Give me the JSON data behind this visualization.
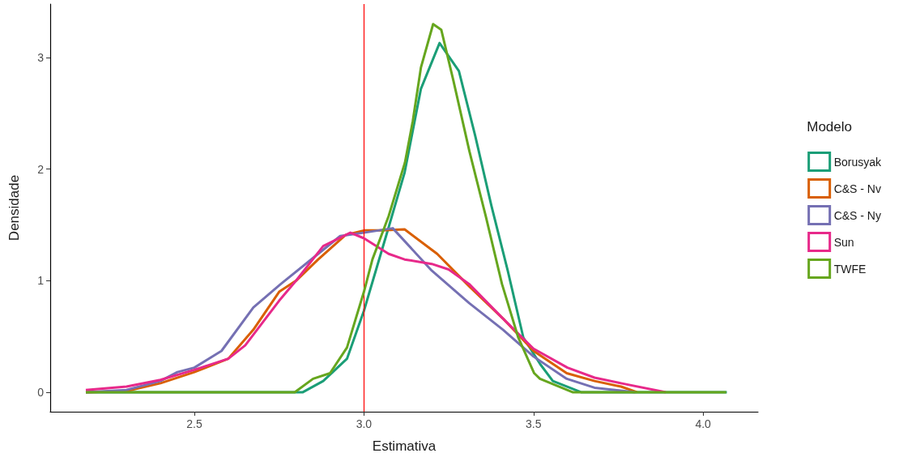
{
  "chart_data": {
    "type": "line",
    "xlabel": "Estimativa",
    "ylabel": "Densidade",
    "legend_title": "Modelo",
    "legend": "right",
    "grid": false,
    "marker": "none",
    "line_style": "solid",
    "xlim": [
      2.075,
      4.162
    ],
    "ylim": [
      -0.175,
      3.48
    ],
    "xticks": [
      2.5,
      {
        "value": 3,
        "label": "3.0"
      },
      3.5,
      {
        "value": 4,
        "label": "4.0"
      }
    ],
    "yticks": [
      0,
      1,
      2,
      3
    ],
    "ref_lines": [
      {
        "axis": "x",
        "value": 3,
        "color": "#ff0000"
      }
    ],
    "series": [
      {
        "name": "Borusyak",
        "color": "#1b9e77",
        "x": [
          2.18,
          2.82,
          2.88,
          2.95,
          3.0,
          3.073,
          3.12,
          3.168,
          3.223,
          3.28,
          3.328,
          3.376,
          3.424,
          3.47,
          3.52,
          3.557,
          3.64,
          4.07
        ],
        "values": [
          0,
          0,
          0.1,
          0.3,
          0.73,
          1.48,
          1.97,
          2.72,
          3.13,
          2.88,
          2.3,
          1.67,
          1.09,
          0.49,
          0.25,
          0.1,
          0,
          0
        ]
      },
      {
        "name": "C&S - Nv",
        "color": "#d95f02",
        "x": [
          2.18,
          2.3,
          2.4,
          2.5,
          2.6,
          2.674,
          2.75,
          2.8,
          2.865,
          2.946,
          3.0,
          3.05,
          3.12,
          3.216,
          3.31,
          3.41,
          3.5,
          3.598,
          3.68,
          3.758,
          3.805
        ],
        "values": [
          0,
          0.01,
          0.08,
          0.18,
          0.3,
          0.56,
          0.9,
          1.0,
          1.19,
          1.41,
          1.45,
          1.45,
          1.46,
          1.24,
          0.95,
          0.66,
          0.37,
          0.17,
          0.1,
          0.05,
          0
        ]
      },
      {
        "name": "C&S - Ny",
        "color": "#7570b3",
        "x": [
          2.18,
          2.3,
          2.4,
          2.45,
          2.5,
          2.58,
          2.674,
          2.755,
          2.865,
          2.93,
          3.0,
          3.085,
          3.2,
          3.31,
          3.41,
          3.5,
          3.598,
          3.68,
          3.8
        ],
        "values": [
          0,
          0.02,
          0.1,
          0.18,
          0.22,
          0.37,
          0.76,
          0.97,
          1.24,
          1.4,
          1.43,
          1.47,
          1.09,
          0.8,
          0.56,
          0.32,
          0.12,
          0.04,
          0
        ]
      },
      {
        "name": "Sun",
        "color": "#e7298a",
        "x": [
          2.18,
          2.3,
          2.4,
          2.5,
          2.6,
          2.65,
          2.7,
          2.75,
          2.8,
          2.88,
          2.96,
          3.0,
          3.073,
          3.12,
          3.2,
          3.25,
          3.31,
          3.41,
          3.5,
          3.6,
          3.68,
          3.758,
          3.89
        ],
        "values": [
          0.02,
          0.05,
          0.11,
          0.2,
          0.3,
          0.42,
          0.62,
          0.82,
          1.0,
          1.31,
          1.43,
          1.38,
          1.24,
          1.19,
          1.15,
          1.1,
          0.97,
          0.66,
          0.39,
          0.22,
          0.13,
          0.08,
          0
        ]
      },
      {
        "name": "TWFE",
        "color": "#66a61e",
        "x": [
          2.18,
          2.796,
          2.85,
          2.9,
          2.95,
          3.0,
          3.025,
          3.073,
          3.121,
          3.144,
          3.168,
          3.204,
          3.228,
          3.264,
          3.311,
          3.359,
          3.407,
          3.455,
          3.502,
          3.519,
          3.615,
          4.068
        ],
        "values": [
          0,
          0,
          0.12,
          0.17,
          0.4,
          0.9,
          1.19,
          1.58,
          2.06,
          2.43,
          2.91,
          3.3,
          3.25,
          2.79,
          2.16,
          1.58,
          0.97,
          0.49,
          0.17,
          0.12,
          0,
          0
        ]
      }
    ]
  }
}
